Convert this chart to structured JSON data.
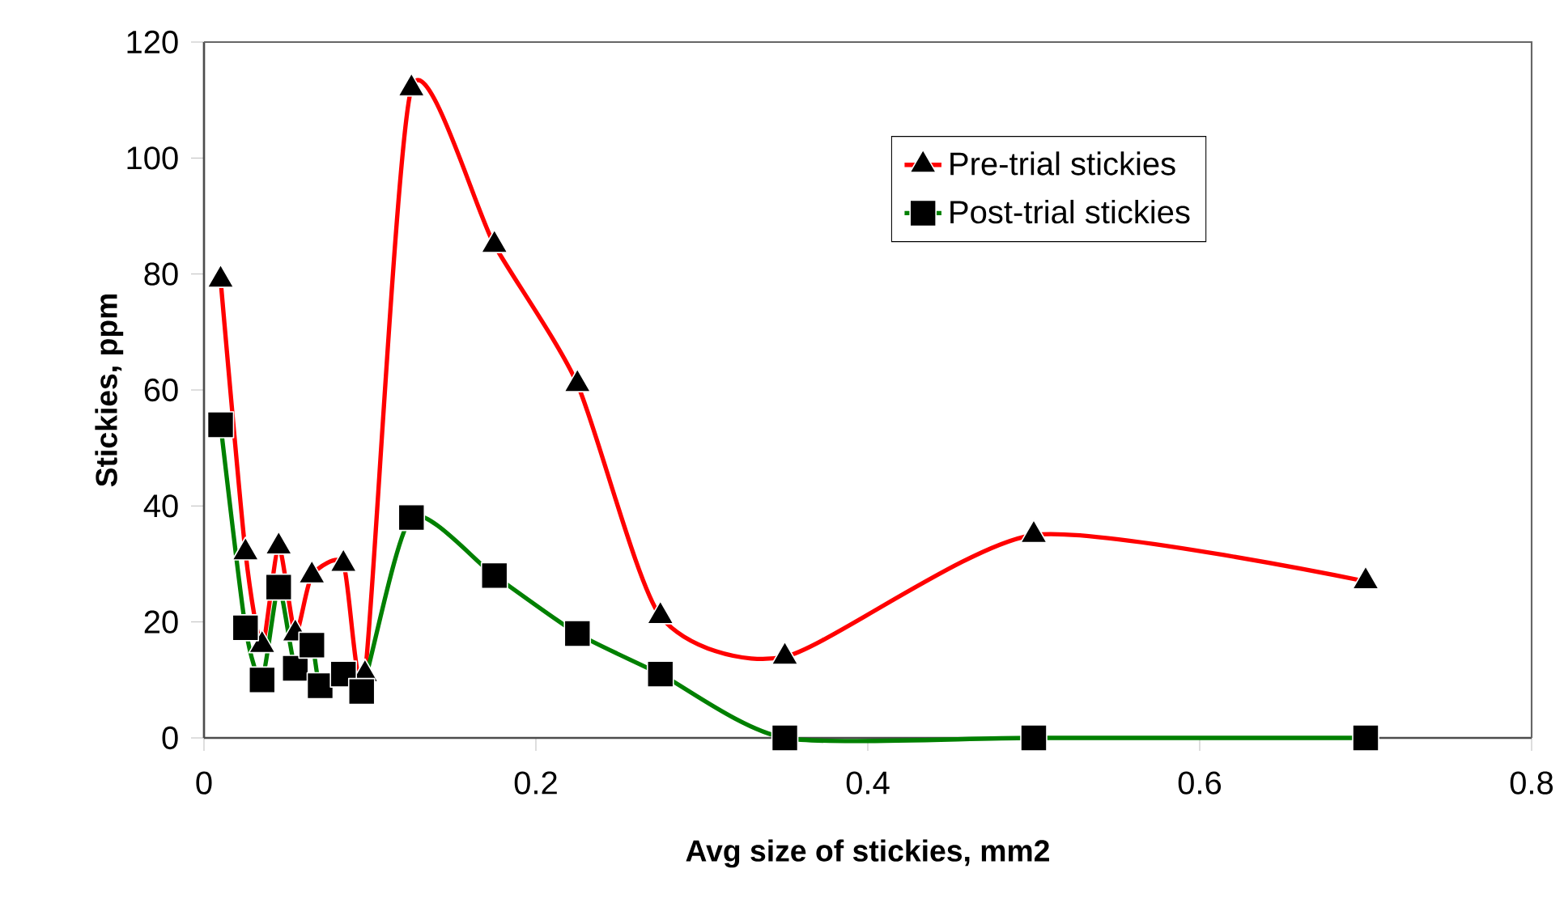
{
  "chart_data": {
    "type": "line",
    "xlabel": "Avg size of stickies, mm2",
    "ylabel": "Stickies, ppm",
    "series": [
      {
        "name": "Pre-trial stickies",
        "color": "#ff0000",
        "marker": "triangle",
        "x": [
          0.01,
          0.025,
          0.035,
          0.045,
          0.055,
          0.065,
          0.084,
          0.097,
          0.125,
          0.175,
          0.225,
          0.275,
          0.35,
          0.5,
          0.7
        ],
        "values": [
          79,
          32,
          16,
          33,
          18,
          28,
          30,
          11,
          112,
          85,
          61,
          21,
          14,
          35,
          27
        ]
      },
      {
        "name": "Post-trial stickies",
        "color": "#008000",
        "marker": "square",
        "x": [
          0.01,
          0.025,
          0.035,
          0.045,
          0.055,
          0.065,
          0.07,
          0.084,
          0.095,
          0.125,
          0.175,
          0.225,
          0.275,
          0.35,
          0.5,
          0.7
        ],
        "values": [
          54,
          19,
          10,
          26,
          12,
          16,
          9,
          11,
          8,
          38,
          28,
          18,
          11,
          0,
          0,
          0
        ]
      }
    ],
    "xlim": [
      0,
      0.8
    ],
    "xticks": [
      0,
      0.2,
      0.4,
      0.6,
      0.8
    ],
    "ylim": [
      0,
      120
    ],
    "yticks": [
      0,
      20,
      40,
      60,
      80,
      100,
      120
    ],
    "grid": false,
    "legend": "top right"
  }
}
